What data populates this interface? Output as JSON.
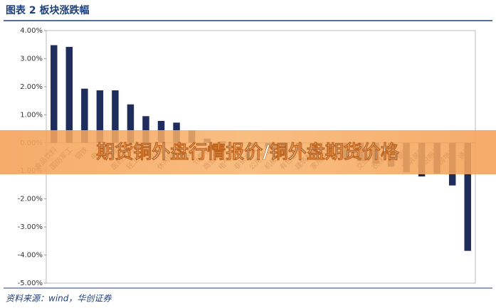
{
  "chart_data": {
    "type": "bar",
    "title": "图表 2  板块涨跌幅",
    "categories": [
      "食品饮料",
      "国防军工",
      "钢铁",
      "电子",
      "汽车",
      "医药生物",
      "轻工制造",
      "化工",
      "休闲服务",
      "采掘",
      "计算机",
      "商业贸易",
      "电气设备",
      "非银金融",
      "公用事业",
      "机械设备",
      "有色金属",
      "建筑材料",
      "家用电器",
      "传媒",
      "综合",
      "交通运输",
      "农林牧渔",
      "银行",
      "建筑装饰",
      "纺织服装",
      "房地产",
      "通信"
    ],
    "values": [
      3.48,
      3.42,
      1.93,
      1.87,
      1.87,
      1.37,
      0.95,
      0.78,
      0.72,
      0.44,
      0.15,
      0.05,
      -0.05,
      -0.12,
      -0.2,
      -0.25,
      -0.3,
      -0.35,
      -0.45,
      -0.55,
      -0.65,
      -0.75,
      -0.85,
      -1.05,
      -1.2,
      -1.1,
      -1.52,
      -3.85
    ],
    "color": "#1f2d5c",
    "ylim": [
      -5,
      4
    ],
    "yticks": [
      {
        "value": 4,
        "label": "4.00%"
      },
      {
        "value": 3,
        "label": "3.00%"
      },
      {
        "value": 2,
        "label": "2.00%"
      },
      {
        "value": 1,
        "label": "1.00%"
      },
      {
        "value": 0,
        "label": "0.00%"
      },
      {
        "value": -1,
        "label": "-1.00%"
      },
      {
        "value": -2,
        "label": "-2.00%"
      },
      {
        "value": -3,
        "label": "-3.00%"
      },
      {
        "value": -4,
        "label": "-4.00%"
      },
      {
        "value": -5,
        "label": "-5.00%"
      }
    ],
    "source": "资料来源：wind，华创证券"
  },
  "banner": "期货铜外盘行情报价/铜外盘期货价格"
}
